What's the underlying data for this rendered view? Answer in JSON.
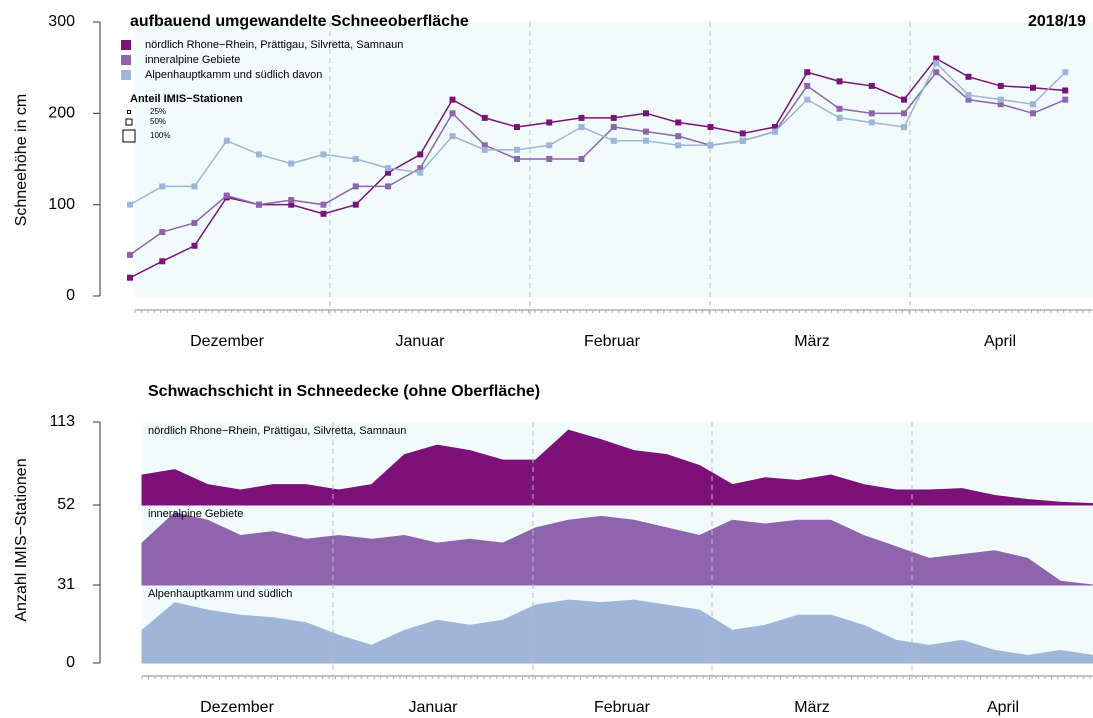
{
  "chart_data": [
    {
      "type": "line",
      "title": "aufbauend umgewandelte Schneeoberfläche",
      "subtitle": "2018/19",
      "y_label": "Schneehöhe in cm",
      "x_labels": [
        "Dezember",
        "Januar",
        "Februar",
        "März",
        "April"
      ],
      "ylim": [
        0,
        300
      ],
      "yticks": [
        0,
        100,
        200,
        300
      ],
      "size_legend": {
        "title": "Anteil IMIS−Stationen",
        "ticks": [
          {
            "value": 25,
            "label": "25%"
          },
          {
            "value": 50,
            "label": "50%"
          },
          {
            "value": 100,
            "label": "100%"
          }
        ]
      },
      "series": [
        {
          "name": "nördlich Rhone−Rhein, Prättigau, Silvretta, Samnaun",
          "color": "#7b1278",
          "values": [
            20,
            38,
            55,
            108,
            100,
            100,
            90,
            100,
            135,
            155,
            215,
            195,
            185,
            190,
            195,
            195,
            200,
            190,
            185,
            178,
            185,
            245,
            235,
            230,
            215,
            260,
            240,
            230,
            228,
            225
          ]
        },
        {
          "name": "inneralpine Gebiete",
          "color": "#8e65ad",
          "values": [
            45,
            70,
            80,
            110,
            100,
            105,
            100,
            120,
            120,
            140,
            200,
            165,
            150,
            150,
            150,
            185,
            180,
            175,
            165,
            170,
            180,
            230,
            205,
            200,
            200,
            245,
            215,
            210,
            200,
            215
          ]
        },
        {
          "name": "Alpenhauptkamm und südlich davon",
          "color": "#9db5d9",
          "values": [
            100,
            120,
            120,
            170,
            155,
            145,
            155,
            150,
            140,
            135,
            175,
            160,
            160,
            165,
            185,
            170,
            170,
            165,
            165,
            170,
            180,
            215,
            195,
            190,
            185,
            255,
            220,
            215,
            210,
            245
          ]
        }
      ]
    },
    {
      "type": "area",
      "title": "Schwachschicht in Schneedecke (ohne Oberfläche)",
      "y_label": "Anzahl IMIS−Stationen",
      "x_labels": [
        "Dezember",
        "Januar",
        "Februar",
        "März",
        "April"
      ],
      "yticks": [
        0,
        31,
        52,
        113
      ],
      "series": [
        {
          "name": "Alpenhauptkamm und südlich",
          "color": "#9fb6d8",
          "values": [
            13,
            24,
            21,
            19,
            18,
            16,
            11,
            7,
            13,
            17,
            15,
            17,
            23,
            25,
            24,
            25,
            23,
            21,
            13,
            15,
            19,
            19,
            15,
            9,
            7,
            9,
            5,
            3,
            5,
            3
          ]
        },
        {
          "name": "inneralpine Gebiete",
          "color": "#8e65ad",
          "values": [
            11,
            19,
            17,
            13,
            14,
            12,
            13,
            12,
            13,
            11,
            12,
            11,
            15,
            17,
            18,
            17,
            15,
            13,
            17,
            16,
            17,
            17,
            13,
            10,
            7,
            8,
            9,
            7,
            1,
            0
          ]
        },
        {
          "name": "nördlich Rhone−Rhein, Prättigau, Silvretta, Samnaun",
          "color": "#7d117a",
          "values": [
            22,
            26,
            15,
            11,
            15,
            15,
            11,
            15,
            37,
            44,
            40,
            33,
            33,
            55,
            48,
            40,
            37,
            29,
            15,
            20,
            18,
            22,
            15,
            11,
            11,
            12,
            7,
            4,
            2,
            1
          ]
        }
      ]
    }
  ]
}
